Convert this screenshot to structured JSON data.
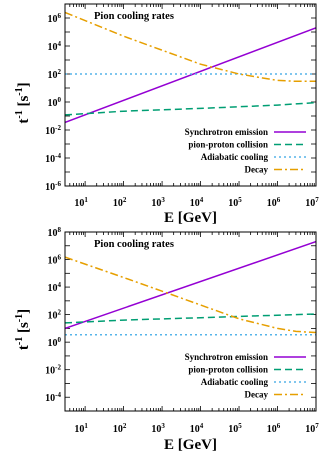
{
  "chart_data": [
    {
      "type": "line",
      "title": "Pion cooling rates",
      "xlabel": "E   [GeV]",
      "ylabel": "t^-1 [s^-1]",
      "xscale": "log",
      "yscale": "log",
      "xlim": [
        3,
        10000000
      ],
      "ylim": [
        1e-06,
        10000000
      ],
      "xticks": [
        {
          "exp": "1"
        },
        {
          "exp": "2"
        },
        {
          "exp": "3"
        },
        {
          "exp": "4"
        },
        {
          "exp": "5"
        },
        {
          "exp": "6"
        },
        {
          "exp": "7"
        }
      ],
      "yticks": [
        {
          "exp": "-6"
        },
        {
          "exp": "-4"
        },
        {
          "exp": "-2"
        },
        {
          "exp": "0"
        },
        {
          "exp": "2"
        },
        {
          "exp": "4"
        },
        {
          "exp": "6"
        }
      ],
      "legend_position": "bottom-right",
      "series": [
        {
          "name": "Synchrotron emission",
          "color": "#9400d3",
          "dash": "solid",
          "x": [
            3,
            10000000
          ],
          "y": [
            0.035,
            200000
          ]
        },
        {
          "name": "pion-proton collision",
          "color": "#009e73",
          "dash": "dashed",
          "x": [
            3,
            100,
            10000,
            1000000,
            10000000
          ],
          "y": [
            0.12,
            0.22,
            0.35,
            0.6,
            0.9
          ]
        },
        {
          "name": "Adiabatic cooling",
          "color": "#56b4e9",
          "dash": "dotted",
          "x": [
            3,
            10000000
          ],
          "y": [
            100,
            100
          ]
        },
        {
          "name": "Decay",
          "color": "#e69f00",
          "dash": "dashdot",
          "x": [
            3,
            100,
            1000,
            10000,
            100000,
            300000,
            1000000,
            3000000,
            10000000
          ],
          "y": [
            2500000,
            50000,
            5000,
            500,
            100,
            60,
            35,
            30,
            30
          ]
        }
      ]
    },
    {
      "type": "line",
      "title": "Pion cooling rates",
      "xlabel": "E   [GeV]",
      "ylabel": "t^-1 [s^-1]",
      "xscale": "log",
      "yscale": "log",
      "xlim": [
        3,
        10000000
      ],
      "ylim": [
        1e-05,
        100000000
      ],
      "xticks": [
        {
          "exp": "1"
        },
        {
          "exp": "2"
        },
        {
          "exp": "3"
        },
        {
          "exp": "4"
        },
        {
          "exp": "5"
        },
        {
          "exp": "6"
        },
        {
          "exp": "7"
        }
      ],
      "yticks": [
        {
          "exp": "-4"
        },
        {
          "exp": "-2"
        },
        {
          "exp": "0"
        },
        {
          "exp": "2"
        },
        {
          "exp": "4"
        },
        {
          "exp": "6"
        },
        {
          "exp": "8"
        }
      ],
      "legend_position": "bottom-right",
      "series": [
        {
          "name": "Synchrotron emission",
          "color": "#9400d3",
          "dash": "solid",
          "x": [
            3,
            10000000
          ],
          "y": [
            10,
            20000000
          ]
        },
        {
          "name": "pion-proton collision",
          "color": "#009e73",
          "dash": "dashed",
          "x": [
            3,
            100,
            10000,
            1000000,
            10000000
          ],
          "y": [
            25,
            40,
            60,
            90,
            110
          ]
        },
        {
          "name": "Adiabatic cooling",
          "color": "#56b4e9",
          "dash": "dotted",
          "x": [
            3,
            10000000
          ],
          "y": [
            3.5,
            3.5
          ]
        },
        {
          "name": "Decay",
          "color": "#e69f00",
          "dash": "dashdot",
          "x": [
            3,
            100,
            1000,
            10000,
            100000,
            1000000,
            3000000,
            10000000
          ],
          "y": [
            1500000,
            50000,
            5000,
            500,
            50,
            10,
            6,
            5
          ]
        }
      ]
    }
  ]
}
